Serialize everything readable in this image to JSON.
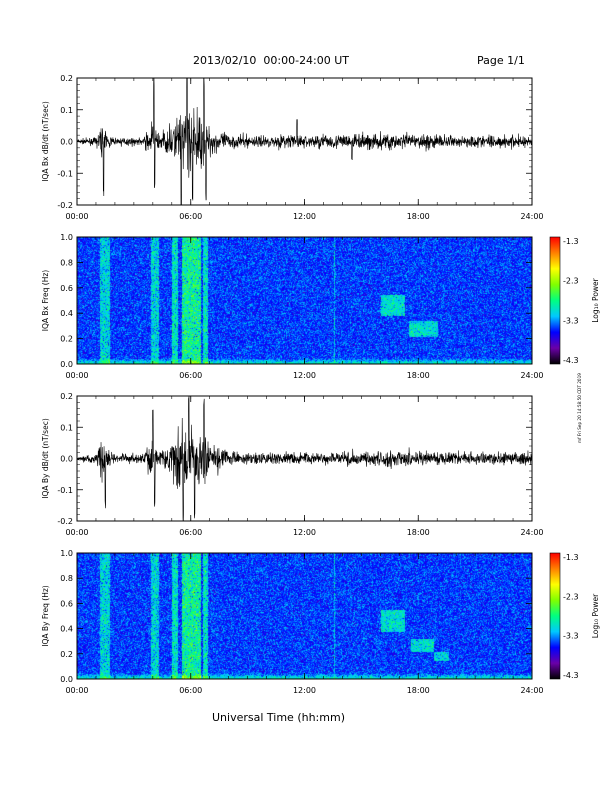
{
  "page": {
    "title": "2013/02/10  00:00-24:00 UT",
    "page_label": "Page 1/1",
    "xlabel": "Universal Time (hh:mm)",
    "side_note": "mf Fri Sep 20 14:58:50 CDT 2019"
  },
  "chart_data": [
    {
      "type": "line",
      "ylabel": "IQA Bx dB/dt (nT/sec)",
      "ylim": [
        -0.2,
        0.2
      ],
      "yticks": [
        "0.2",
        "0.1",
        "0.0",
        "-0.1",
        "-0.2"
      ],
      "xticks": [
        "00:00",
        "06:00",
        "12:00",
        "18:00",
        "24:00"
      ],
      "xlim_hours": [
        0,
        24
      ],
      "noise_envelope": {
        "hours": [
          0,
          1,
          1.3,
          1.6,
          2,
          3.5,
          4,
          4.3,
          5,
          5.5,
          6,
          6.5,
          7,
          8,
          10,
          11,
          12,
          14,
          16,
          17,
          18,
          20,
          22,
          24
        ],
        "amplitude": [
          0.012,
          0.02,
          0.09,
          0.04,
          0.02,
          0.02,
          0.12,
          0.04,
          0.08,
          0.18,
          0.2,
          0.14,
          0.08,
          0.04,
          0.03,
          0.04,
          0.035,
          0.04,
          0.05,
          0.05,
          0.04,
          0.035,
          0.035,
          0.035
        ]
      },
      "spikes": [
        {
          "hour": 1.4,
          "value": -0.18
        },
        {
          "hour": 4.05,
          "value": 0.22
        },
        {
          "hour": 4.1,
          "value": -0.16
        },
        {
          "hour": 5.5,
          "value": -0.22
        },
        {
          "hour": 5.8,
          "value": 0.22
        },
        {
          "hour": 6.1,
          "value": -0.2
        },
        {
          "hour": 6.7,
          "value": 0.22
        },
        {
          "hour": 6.8,
          "value": -0.2
        },
        {
          "hour": 11.6,
          "value": 0.07
        },
        {
          "hour": 14.5,
          "value": -0.06
        }
      ]
    },
    {
      "type": "heatmap",
      "ylabel": "IQA Bx Freq (Hz)",
      "ylim": [
        0,
        1.0
      ],
      "yticks": [
        "1.0",
        "0.8",
        "0.6",
        "0.4",
        "0.2",
        "0.0"
      ],
      "xticks": [
        "00:00",
        "06:00",
        "12:00",
        "18:00",
        "24:00"
      ],
      "colorbar": {
        "label": "Log₁₀ Power",
        "ticks": [
          "-1.3",
          "-2.3",
          "-3.3",
          "-4.3"
        ],
        "range": [
          -4.3,
          -1.3
        ],
        "colors": [
          "#000000",
          "#6a00a8",
          "#0000ff",
          "#00c8ff",
          "#00ff80",
          "#80ff00",
          "#ffff00",
          "#ff8000",
          "#ff0000"
        ]
      },
      "background_log_power": -3.45,
      "events": [
        {
          "hours": [
            1.2,
            1.7
          ],
          "freq_max": 1.0,
          "power": -2.9
        },
        {
          "hours": [
            3.9,
            4.3
          ],
          "freq_max": 1.0,
          "power": -2.9
        },
        {
          "hours": [
            5.0,
            5.3
          ],
          "freq_max": 1.0,
          "power": -2.8
        },
        {
          "hours": [
            5.5,
            6.5
          ],
          "freq_max": 1.0,
          "power": -2.6
        },
        {
          "hours": [
            6.6,
            6.9
          ],
          "freq_max": 1.0,
          "power": -2.8
        },
        {
          "hours": [
            13.55,
            13.6
          ],
          "freq_max": 1.0,
          "power": -3.0
        },
        {
          "hours": [
            16.0,
            17.3
          ],
          "freq_min": 0.38,
          "freq_max": 0.55,
          "power": -2.7
        },
        {
          "hours": [
            17.5,
            19.0
          ],
          "freq_min": 0.22,
          "freq_max": 0.34,
          "power": -2.7
        }
      ]
    },
    {
      "type": "line",
      "ylabel": "IQA By dB/dt (nT/sec)",
      "ylim": [
        -0.2,
        0.2
      ],
      "yticks": [
        "0.2",
        "0.1",
        "0.0",
        "-0.1",
        "-0.2"
      ],
      "xticks": [
        "00:00",
        "06:00",
        "12:00",
        "18:00",
        "24:00"
      ],
      "xlim_hours": [
        0,
        24
      ],
      "noise_envelope": {
        "hours": [
          0,
          1,
          1.3,
          1.7,
          2,
          3.5,
          4,
          4.3,
          5,
          5.5,
          6,
          6.5,
          7,
          8,
          10,
          11,
          12,
          14,
          16,
          17,
          18,
          20,
          22,
          24
        ],
        "amplitude": [
          0.012,
          0.03,
          0.12,
          0.06,
          0.02,
          0.03,
          0.14,
          0.04,
          0.1,
          0.2,
          0.21,
          0.16,
          0.09,
          0.04,
          0.03,
          0.035,
          0.03,
          0.035,
          0.045,
          0.05,
          0.04,
          0.035,
          0.035,
          0.035
        ]
      },
      "spikes": [
        {
          "hour": 1.5,
          "value": -0.16
        },
        {
          "hour": 4.0,
          "value": 0.18
        },
        {
          "hour": 4.1,
          "value": -0.17
        },
        {
          "hour": 5.6,
          "value": -0.22
        },
        {
          "hour": 5.9,
          "value": 0.22
        },
        {
          "hour": 6.2,
          "value": -0.22
        },
        {
          "hour": 6.7,
          "value": 0.2
        }
      ]
    },
    {
      "type": "heatmap",
      "ylabel": "IQA By Freq (Hz)",
      "ylim": [
        0,
        1.0
      ],
      "yticks": [
        "1.0",
        "0.8",
        "0.6",
        "0.4",
        "0.2",
        "0.0"
      ],
      "xticks": [
        "00:00",
        "06:00",
        "12:00",
        "18:00",
        "24:00"
      ],
      "colorbar": {
        "label": "Log₁₀ Power",
        "ticks": [
          "-1.3",
          "-2.3",
          "-3.3",
          "-4.3"
        ],
        "range": [
          -4.3,
          -1.3
        ],
        "colors": [
          "#000000",
          "#6a00a8",
          "#0000ff",
          "#00c8ff",
          "#00ff80",
          "#80ff00",
          "#ffff00",
          "#ff8000",
          "#ff0000"
        ]
      },
      "background_log_power": -3.45,
      "events": [
        {
          "hours": [
            1.2,
            1.7
          ],
          "freq_max": 1.0,
          "power": -2.9
        },
        {
          "hours": [
            3.9,
            4.3
          ],
          "freq_max": 1.0,
          "power": -2.9
        },
        {
          "hours": [
            5.0,
            5.3
          ],
          "freq_max": 1.0,
          "power": -2.8
        },
        {
          "hours": [
            5.5,
            6.5
          ],
          "freq_max": 1.0,
          "power": -2.6
        },
        {
          "hours": [
            6.6,
            6.9
          ],
          "freq_max": 1.0,
          "power": -2.8
        },
        {
          "hours": [
            13.55,
            13.6
          ],
          "freq_max": 1.0,
          "power": -3.0
        },
        {
          "hours": [
            16.0,
            17.3
          ],
          "freq_min": 0.38,
          "freq_max": 0.55,
          "power": -2.7
        },
        {
          "hours": [
            17.6,
            18.8
          ],
          "freq_min": 0.22,
          "freq_max": 0.32,
          "power": -2.7
        },
        {
          "hours": [
            18.8,
            19.6
          ],
          "freq_min": 0.15,
          "freq_max": 0.22,
          "power": -2.8
        }
      ]
    }
  ]
}
